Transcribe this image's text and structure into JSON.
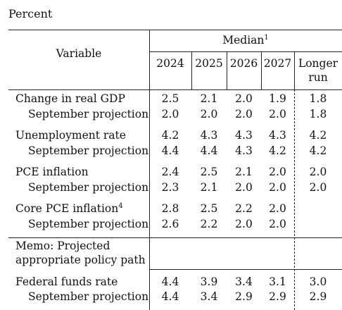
{
  "unit_label": "Percent",
  "header": {
    "variable": "Variable",
    "median": "Median",
    "median_note": "1",
    "years": [
      "2024",
      "2025",
      "2026",
      "2027"
    ],
    "longer_run_line1": "Longer",
    "longer_run_line2": "run"
  },
  "rows": [
    {
      "label": "Change in real GDP",
      "note": "",
      "values": [
        "2.5",
        "2.1",
        "2.0",
        "1.9",
        "1.8"
      ]
    },
    {
      "label": "September projection",
      "note": "",
      "values": [
        "2.0",
        "2.0",
        "2.0",
        "2.0",
        "1.8"
      ]
    },
    {
      "label": "Unemployment rate",
      "note": "",
      "values": [
        "4.2",
        "4.3",
        "4.3",
        "4.3",
        "4.2"
      ]
    },
    {
      "label": "September projection",
      "note": "",
      "values": [
        "4.4",
        "4.4",
        "4.3",
        "4.2",
        "4.2"
      ]
    },
    {
      "label": "PCE inflation",
      "note": "",
      "values": [
        "2.4",
        "2.5",
        "2.1",
        "2.0",
        "2.0"
      ]
    },
    {
      "label": "September projection",
      "note": "",
      "values": [
        "2.3",
        "2.1",
        "2.0",
        "2.0",
        "2.0"
      ]
    },
    {
      "label": "Core PCE inflation",
      "note": "4",
      "values": [
        "2.8",
        "2.5",
        "2.2",
        "2.0",
        ""
      ]
    },
    {
      "label": "September projection",
      "note": "",
      "values": [
        "2.6",
        "2.2",
        "2.0",
        "2.0",
        ""
      ]
    }
  ],
  "memo": {
    "line1": "Memo: Projected",
    "line2": "appropriate policy path"
  },
  "policy_rows": [
    {
      "label": "Federal funds rate",
      "values": [
        "4.4",
        "3.9",
        "3.4",
        "3.1",
        "3.0"
      ]
    },
    {
      "label": "September projection",
      "values": [
        "4.4",
        "3.4",
        "2.9",
        "2.9",
        "2.9"
      ]
    }
  ]
}
